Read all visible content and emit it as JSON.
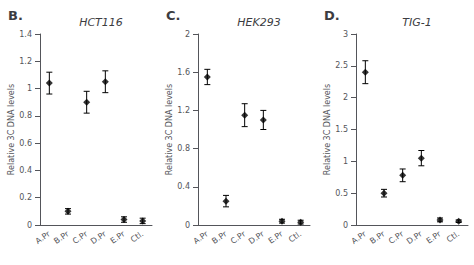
{
  "chart_data": [
    {
      "type": "scatter",
      "title": "HCT116",
      "annotations": [
        "B."
      ],
      "categories": [
        "A.Pr",
        "B.Pr",
        "C.Pr",
        "D.Pr",
        "E.Pr",
        "Ctl."
      ],
      "values": [
        1.04,
        0.1,
        0.9,
        1.05,
        0.04,
        0.03
      ],
      "errors": [
        0.08,
        0.02,
        0.08,
        0.08,
        0.02,
        0.02
      ],
      "ylim": [
        0,
        1.4
      ],
      "yticks": [
        0,
        0.2,
        0.4,
        0.6,
        0.8,
        1,
        1.2,
        1.4
      ],
      "ylabel": "Relative 3C DNA levels",
      "color": "#000000",
      "marker": "diamond",
      "grid": false
    },
    {
      "type": "scatter",
      "title": "HEK293",
      "annotations": [
        "C."
      ],
      "categories": [
        "A.Pr",
        "B.Pr",
        "C.Pr",
        "D.Pr",
        "E.Pr",
        "Ctl."
      ],
      "values": [
        1.55,
        0.25,
        1.15,
        1.1,
        0.04,
        0.03
      ],
      "errors": [
        0.08,
        0.06,
        0.12,
        0.1,
        0.02,
        0.02
      ],
      "ylim": [
        0,
        2.0
      ],
      "yticks": [
        0,
        0.4,
        0.8,
        1.2,
        1.6,
        2
      ],
      "ylabel": "Relative 3C DNA levels",
      "color": "#000000",
      "marker": "diamond",
      "grid": false
    },
    {
      "type": "scatter",
      "title": "TIG-1",
      "annotations": [
        "D."
      ],
      "categories": [
        "A.Pr",
        "B.Pr",
        "C.Pr",
        "D.Pr",
        "E.Pr",
        "Ctl."
      ],
      "values": [
        2.4,
        0.5,
        0.78,
        1.05,
        0.08,
        0.06
      ],
      "errors": [
        0.18,
        0.06,
        0.1,
        0.12,
        0.03,
        0.02
      ],
      "ylim": [
        0,
        3.0
      ],
      "yticks": [
        0,
        0.5,
        1,
        1.5,
        2,
        2.5,
        3
      ],
      "ylabel": "Relative 3C DNA levels",
      "color": "#000000",
      "marker": "diamond",
      "grid": false
    }
  ]
}
